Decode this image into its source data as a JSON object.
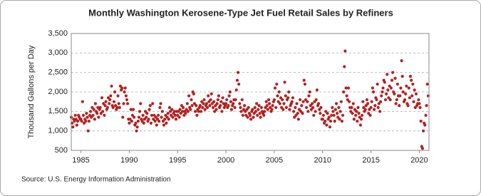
{
  "chart_data": {
    "type": "scatter",
    "title": "Monthly Washington Kerosene-Type Jet Fuel Retail Sales by Refiners",
    "y_label": "Thousand Gallons per Day",
    "source": "Source: U.S. Energy Information Administration",
    "color": "#b5201f",
    "grid": true,
    "xlim": [
      1984,
      2021
    ],
    "xticks": [
      1985,
      1990,
      1995,
      2000,
      2005,
      2010,
      2015,
      2020
    ],
    "ylim": [
      500,
      3500
    ],
    "yticks": [
      500,
      {
        "value": 1000,
        "label": "1,000"
      },
      {
        "value": 1500,
        "label": "1,500"
      },
      {
        "value": 2000,
        "label": "2,000"
      },
      {
        "value": 2500,
        "label": "2,500"
      },
      {
        "value": 3000,
        "label": "3,000"
      },
      {
        "value": 3500,
        "label": "3,500"
      }
    ],
    "x": [
      1984,
      1984.08,
      1984.17,
      1984.25,
      1984.33,
      1984.42,
      1984.5,
      1984.58,
      1984.67,
      1984.75,
      1984.83,
      1984.92,
      1985,
      1985.08,
      1985.17,
      1985.25,
      1985.33,
      1985.42,
      1985.5,
      1985.58,
      1985.67,
      1985.75,
      1985.83,
      1985.92,
      1986,
      1986.08,
      1986.17,
      1986.25,
      1986.33,
      1986.42,
      1986.5,
      1986.58,
      1986.67,
      1986.75,
      1986.83,
      1986.92,
      1987,
      1987.08,
      1987.17,
      1987.25,
      1987.33,
      1987.42,
      1987.5,
      1987.58,
      1987.67,
      1987.75,
      1987.83,
      1987.92,
      1988,
      1988.08,
      1988.17,
      1988.25,
      1988.33,
      1988.42,
      1988.5,
      1988.58,
      1988.67,
      1988.75,
      1988.83,
      1988.92,
      1989,
      1989.08,
      1989.17,
      1989.25,
      1989.33,
      1989.42,
      1989.5,
      1989.58,
      1989.67,
      1989.75,
      1989.83,
      1989.92,
      1990,
      1990.08,
      1990.17,
      1990.25,
      1990.33,
      1990.42,
      1990.5,
      1990.58,
      1990.67,
      1990.75,
      1990.83,
      1990.92,
      1991,
      1991.08,
      1991.17,
      1991.25,
      1991.33,
      1991.42,
      1991.5,
      1991.58,
      1991.67,
      1991.75,
      1991.83,
      1991.92,
      1992,
      1992.08,
      1992.17,
      1992.25,
      1992.33,
      1992.42,
      1992.5,
      1992.58,
      1992.67,
      1992.75,
      1992.83,
      1992.92,
      1993,
      1993.08,
      1993.17,
      1993.25,
      1993.33,
      1993.42,
      1993.5,
      1993.58,
      1993.67,
      1993.75,
      1993.83,
      1993.92,
      1994,
      1994.08,
      1994.17,
      1994.25,
      1994.33,
      1994.42,
      1994.5,
      1994.58,
      1994.67,
      1994.75,
      1994.83,
      1994.92,
      1995,
      1995.08,
      1995.17,
      1995.25,
      1995.33,
      1995.42,
      1995.5,
      1995.58,
      1995.67,
      1995.75,
      1995.83,
      1995.92,
      1996,
      1996.08,
      1996.17,
      1996.25,
      1996.33,
      1996.42,
      1996.5,
      1996.58,
      1996.67,
      1996.75,
      1996.83,
      1996.92,
      1997,
      1997.08,
      1997.17,
      1997.25,
      1997.33,
      1997.42,
      1997.5,
      1997.58,
      1997.67,
      1997.75,
      1997.83,
      1997.92,
      1998,
      1998.08,
      1998.17,
      1998.25,
      1998.33,
      1998.42,
      1998.5,
      1998.58,
      1998.67,
      1998.75,
      1998.83,
      1998.92,
      1999,
      1999.08,
      1999.17,
      1999.25,
      1999.33,
      1999.42,
      1999.5,
      1999.58,
      1999.67,
      1999.75,
      1999.83,
      1999.92,
      2000,
      2000.08,
      2000.17,
      2000.25,
      2000.33,
      2000.42,
      2000.5,
      2000.58,
      2000.67,
      2000.75,
      2000.83,
      2000.92,
      2001,
      2001.08,
      2001.17,
      2001.25,
      2001.33,
      2001.42,
      2001.5,
      2001.58,
      2001.67,
      2001.75,
      2001.83,
      2001.92,
      2002,
      2002.08,
      2002.17,
      2002.25,
      2002.33,
      2002.42,
      2002.5,
      2002.58,
      2002.67,
      2002.75,
      2002.83,
      2002.92,
      2003,
      2003.08,
      2003.17,
      2003.25,
      2003.33,
      2003.42,
      2003.5,
      2003.58,
      2003.67,
      2003.75,
      2003.83,
      2003.92,
      2004,
      2004.08,
      2004.17,
      2004.25,
      2004.33,
      2004.42,
      2004.5,
      2004.58,
      2004.67,
      2004.75,
      2004.83,
      2004.92,
      2005,
      2005.08,
      2005.17,
      2005.25,
      2005.33,
      2005.42,
      2005.5,
      2005.58,
      2005.67,
      2005.75,
      2005.83,
      2005.92,
      2006,
      2006.08,
      2006.17,
      2006.25,
      2006.33,
      2006.42,
      2006.5,
      2006.58,
      2006.67,
      2006.75,
      2006.83,
      2006.92,
      2007,
      2007.08,
      2007.17,
      2007.25,
      2007.33,
      2007.42,
      2007.5,
      2007.58,
      2007.67,
      2007.75,
      2007.83,
      2007.92,
      2008,
      2008.08,
      2008.17,
      2008.25,
      2008.33,
      2008.42,
      2008.5,
      2008.58,
      2008.67,
      2008.75,
      2008.83,
      2008.92,
      2009,
      2009.08,
      2009.17,
      2009.25,
      2009.33,
      2009.42,
      2009.5,
      2009.58,
      2009.67,
      2009.75,
      2009.83,
      2009.92,
      2010,
      2010.08,
      2010.17,
      2010.25,
      2010.33,
      2010.42,
      2010.5,
      2010.58,
      2010.67,
      2010.75,
      2010.83,
      2010.92,
      2011,
      2011.08,
      2011.17,
      2011.25,
      2011.33,
      2011.42,
      2011.5,
      2011.58,
      2011.67,
      2011.75,
      2011.83,
      2011.92,
      2012,
      2012.08,
      2012.17,
      2012.25,
      2012.33,
      2012.42,
      2012.5,
      2012.58,
      2012.67,
      2012.75,
      2012.83,
      2012.92,
      2013,
      2013.08,
      2013.17,
      2013.25,
      2013.33,
      2013.42,
      2013.5,
      2013.58,
      2013.67,
      2013.75,
      2013.83,
      2013.92,
      2014,
      2014.08,
      2014.17,
      2014.25,
      2014.33,
      2014.42,
      2014.5,
      2014.58,
      2014.67,
      2014.75,
      2014.83,
      2014.92,
      2015,
      2015.08,
      2015.17,
      2015.25,
      2015.33,
      2015.42,
      2015.5,
      2015.58,
      2015.67,
      2015.75,
      2015.83,
      2015.92,
      2016,
      2016.08,
      2016.17,
      2016.25,
      2016.33,
      2016.42,
      2016.5,
      2016.58,
      2016.67,
      2016.75,
      2016.83,
      2016.92,
      2017,
      2017.08,
      2017.17,
      2017.25,
      2017.33,
      2017.42,
      2017.5,
      2017.58,
      2017.67,
      2017.75,
      2017.83,
      2017.92,
      2018,
      2018.08,
      2018.17,
      2018.25,
      2018.33,
      2018.42,
      2018.5,
      2018.58,
      2018.67,
      2018.75,
      2018.83,
      2018.92,
      2019,
      2019.08,
      2019.17,
      2019.25,
      2019.33,
      2019.42,
      2019.5,
      2019.58,
      2019.67,
      2019.75,
      2019.83,
      2019.92,
      2020,
      2020.08,
      2020.17,
      2020.25,
      2020.33,
      2020.42,
      2020.5,
      2020.58,
      2020.67,
      2020.75,
      2020.83,
      2020.92
    ],
    "values": [
      1350,
      1200,
      1100,
      1300,
      1250,
      1400,
      1300,
      1150,
      1250,
      1400,
      1350,
      1300,
      1300,
      1250,
      1750,
      1400,
      1200,
      1300,
      1250,
      1450,
      1350,
      1000,
      1250,
      1400,
      1500,
      1350,
      1600,
      1400,
      1550,
      1300,
      1700,
      1500,
      1450,
      1600,
      1350,
      1550,
      1600,
      1450,
      1850,
      1500,
      1700,
      1400,
      1650,
      1750,
      1550,
      1600,
      1850,
      1700,
      1800,
      1900,
      2150,
      1650,
      1600,
      1750,
      2000,
      1650,
      1550,
      1600,
      1900,
      1700,
      1600,
      2150,
      2050,
      2100,
      1350,
      1700,
      2000,
      2100,
      1900,
      1800,
      1700,
      1300,
      1200,
      1300,
      1550,
      1250,
      1400,
      1550,
      1350,
      1150,
      1200,
      1000,
      1100,
      1250,
      1350,
      1500,
      1700,
      1300,
      1250,
      1400,
      1200,
      1300,
      1500,
      1350,
      1450,
      1250,
      1300,
      1550,
      1650,
      1200,
      1400,
      1700,
      1300,
      1400,
      1250,
      1350,
      1150,
      1300,
      1400,
      1250,
      1600,
      1700,
      1350,
      1500,
      1250,
      1150,
      1300,
      1400,
      1200,
      1350,
      1450,
      1300,
      1600,
      1500,
      1400,
      1550,
      1350,
      1450,
      1500,
      1400,
      1300,
      1500,
      1400,
      1500,
      1350,
      1550,
      1450,
      1650,
      1500,
      1600,
      1400,
      1500,
      1450,
      1550,
      1700,
      1500,
      1900,
      1600,
      1550,
      1800,
      1650,
      2000,
      1950,
      1700,
      1500,
      1650,
      1400,
      1550,
      1500,
      1600,
      1650,
      1500,
      1750,
      1600,
      1700,
      1800,
      1550,
      1650,
      1700,
      1600,
      1900,
      1750,
      1650,
      1800,
      1950,
      1700,
      1600,
      1750,
      1500,
      1650,
      1550,
      1700,
      1800,
      1900,
      1600,
      1650,
      1750,
      1500,
      1850,
      1700,
      1600,
      1650,
      1700,
      1800,
      1600,
      1650,
      1900,
      2000,
      1750,
      1550,
      1650,
      1700,
      1800,
      1600,
      1800,
      2050,
      2300,
      2500,
      2200,
      1700,
      1600,
      1500,
      1800,
      1400,
      1550,
      1650,
      1500,
      1400,
      1550,
      1350,
      1600,
      1450,
      1400,
      1300,
      1500,
      1550,
      1350,
      1450,
      1600,
      1500,
      1700,
      1400,
      1550,
      1650,
      1450,
      1350,
      1600,
      1500,
      1450,
      1400,
      1500,
      1600,
      1750,
      1650,
      1550,
      1800,
      1700,
      1600,
      1500,
      1550,
      1650,
      1750,
      1800,
      2100,
      1600,
      2200,
      1900,
      1750,
      2000,
      1700,
      1850,
      1600,
      1800,
      1550,
      1700,
      2250,
      1900,
      1600,
      1800,
      1850,
      2000,
      1550,
      1650,
      1700,
      1750,
      1850,
      1500,
      1350,
      1600,
      1400,
      1700,
      1450,
      1300,
      1550,
      1800,
      1500,
      1650,
      1450,
      1750,
      2300,
      2200,
      1800,
      1600,
      1750,
      1500,
      1900,
      2000,
      1650,
      1550,
      1700,
      1600,
      1400,
      1750,
      1500,
      1800,
      2050,
      1650,
      1700,
      1550,
      1450,
      1600,
      1300,
      1300,
      1400,
      1200,
      1250,
      1500,
      1150,
      1450,
      1300,
      1350,
      1100,
      1250,
      1400,
      1600,
      1500,
      1400,
      1250,
      1550,
      1700,
      1450,
      1350,
      1600,
      1300,
      1500,
      1750,
      1250,
      1400,
      2000,
      2650,
      3050,
      2100,
      1900,
      1800,
      2100,
      1750,
      1600,
      1500,
      1600,
      1450,
      1700,
      1300,
      1550,
      1400,
      1500,
      1250,
      1600,
      1450,
      1350,
      1150,
      1300,
      1400,
      1750,
      1600,
      1500,
      1550,
      1650,
      1800,
      1700,
      1450,
      1550,
      1400,
      1600,
      1750,
      2100,
      2000,
      1550,
      1650,
      1850,
      1800,
      2200,
      1600,
      1700,
      1500,
      1750,
      1900,
      2000,
      2100,
      2300,
      2250,
      1800,
      1950,
      2450,
      2050,
      1850,
      2150,
      1800,
      2100,
      2300,
      2500,
      2000,
      1950,
      2350,
      1700,
      1800,
      2200,
      1900,
      1650,
      1900,
      2100,
      2800,
      2400,
      2000,
      1750,
      1800,
      1950,
      2150,
      1700,
      1650,
      2100,
      1850,
      2400,
      2300,
      1900,
      2200,
      1750,
      2050,
      1600,
      1950,
      1650,
      1700,
      1800,
      1700,
      1600,
      1250,
      600,
      550,
      1000,
      1200,
      1150,
      1400,
      1650,
      2200,
      1900
    ]
  }
}
